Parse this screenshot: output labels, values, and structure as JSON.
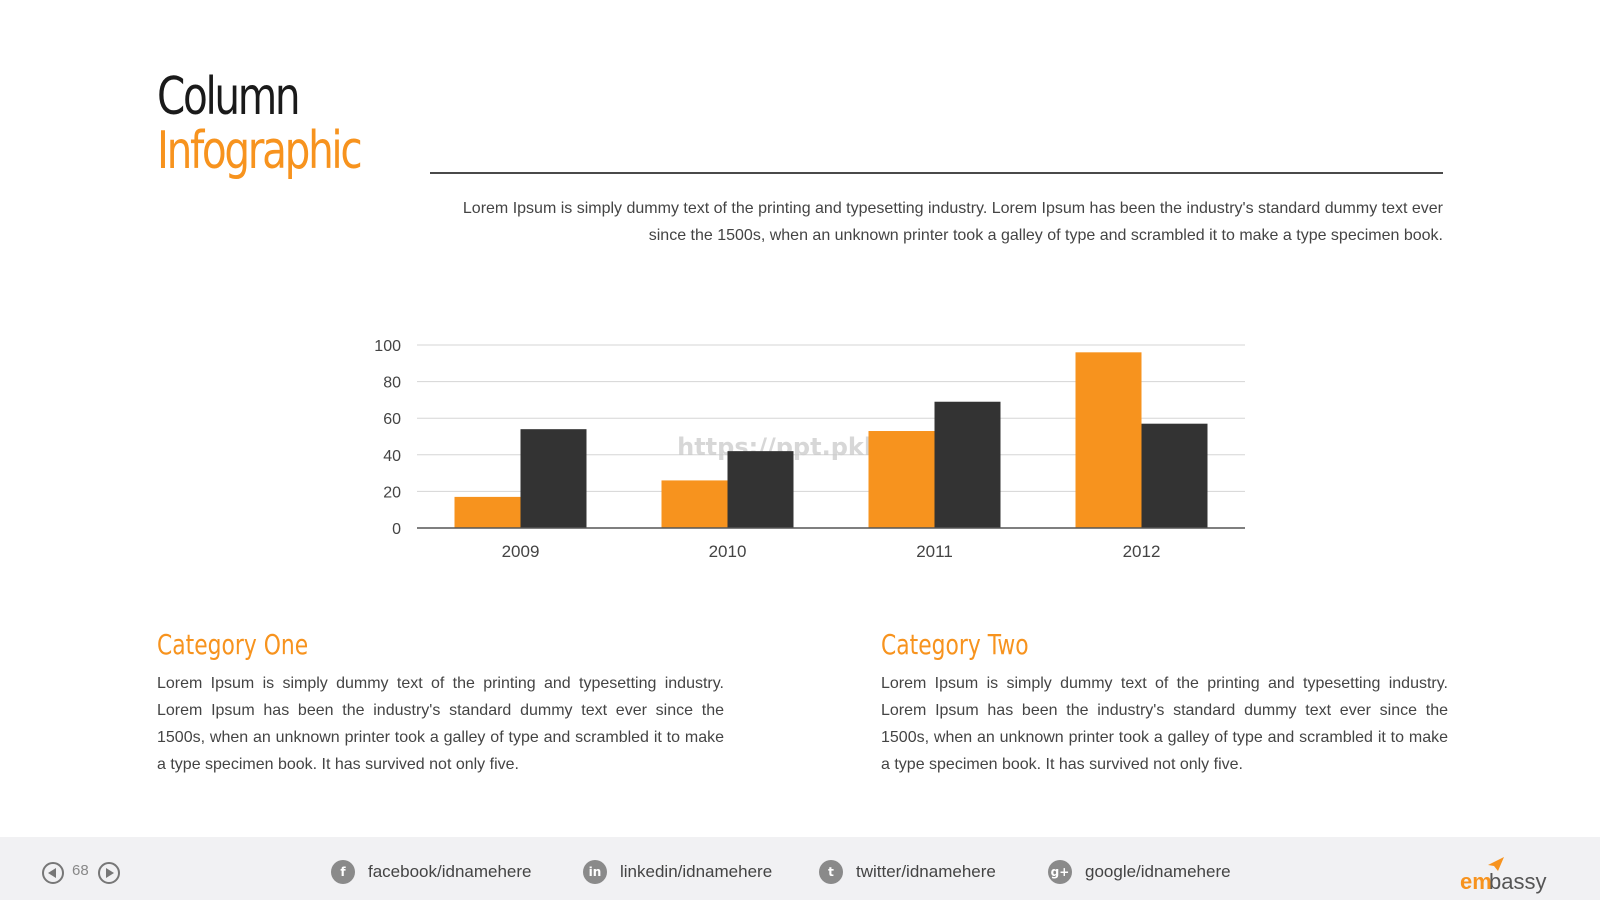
{
  "title": {
    "line1": "Column",
    "line2": "Infographic"
  },
  "intro_text": "Lorem Ipsum is simply dummy text of the printing and typesetting industry. Lorem Ipsum has been the industry's standard dummy text ever since the 1500s, when an unknown printer took a galley of type and scrambled it to make a type specimen book.",
  "watermark": "https://ppt.pkll.de",
  "chart_data": {
    "type": "bar",
    "categories": [
      "2009",
      "2010",
      "2011",
      "2012"
    ],
    "series": [
      {
        "values": [
          17,
          26,
          53,
          96
        ],
        "color": "#f7931e"
      },
      {
        "values": [
          54,
          42,
          69,
          57
        ],
        "color": "#333333"
      }
    ],
    "y_ticks": [
      "0",
      "20",
      "40",
      "60",
      "80",
      "100"
    ],
    "ylim": [
      0,
      100
    ],
    "grid": true,
    "legend": "none"
  },
  "categories": [
    {
      "title": "Category One",
      "body": "Lorem Ipsum is simply dummy text of the printing and typesetting industry. Lorem Ipsum has been the industry's standard dummy text ever since the 1500s, when an unknown printer took a galley of type and scrambled it to make a type specimen book. It has survived not only five."
    },
    {
      "title": "Category Two",
      "body": "Lorem Ipsum is simply dummy text of the printing and typesetting industry. Lorem Ipsum has been the industry's standard dummy text ever since the 1500s, when an unknown printer took a galley of type and scrambled it to make a type specimen book. It has survived not only five."
    }
  ],
  "footer": {
    "page_number": "68",
    "social": [
      {
        "icon": "facebook-icon",
        "glyph": "f",
        "label": "facebook/idnamehere"
      },
      {
        "icon": "linkedin-icon",
        "glyph": "in",
        "label": "linkedin/idnamehere"
      },
      {
        "icon": "twitter-icon",
        "glyph": "t",
        "label": "twitter/idnamehere"
      },
      {
        "icon": "google-plus-icon",
        "glyph": "g+",
        "label": "google/idnamehere"
      }
    ],
    "brand": {
      "part1": "em",
      "part2": "bassy"
    }
  },
  "colors": {
    "accent": "#f7931e",
    "dark": "#333333"
  }
}
